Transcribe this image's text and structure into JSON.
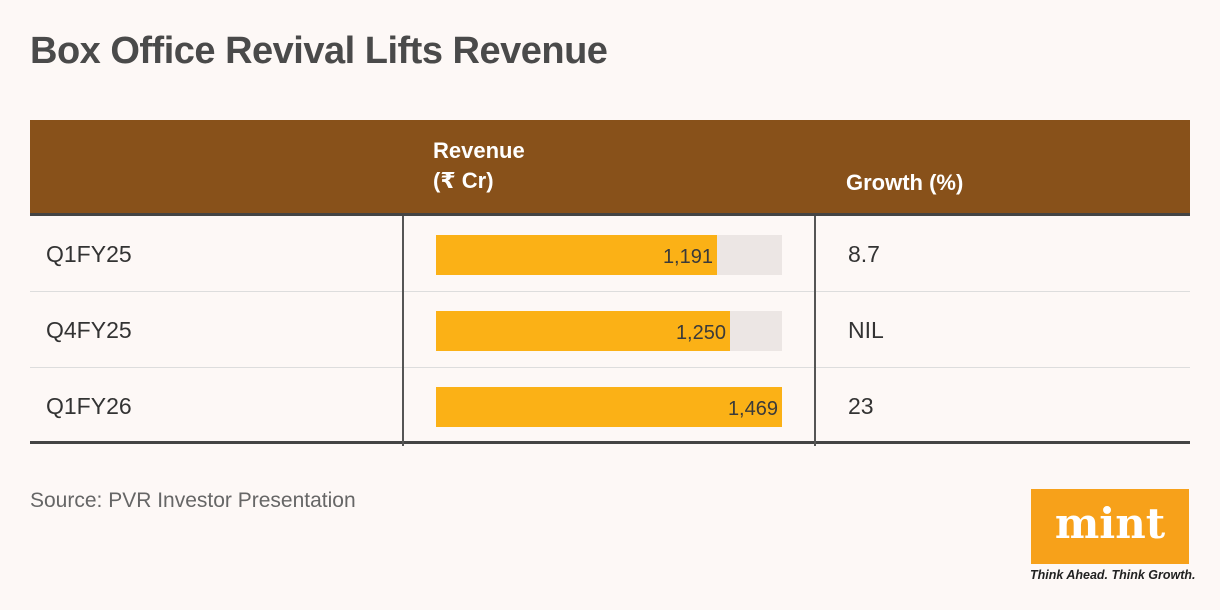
{
  "title": "Box Office Revival Lifts Revenue",
  "header": {
    "revenue_line1": "Revenue",
    "revenue_line2": "(₹ Cr)",
    "growth": "Growth (%)"
  },
  "source": "Source: PVR Investor Presentation",
  "brand": {
    "logo": "mint",
    "tagline": "Think Ahead. Think Growth.",
    "logo_color": "#f7a11a"
  },
  "colors": {
    "header_bg": "#88511a",
    "bar": "#fbb116",
    "bar_track": "#ece6e4"
  },
  "chart_data": {
    "type": "table",
    "title": "Box Office Revival Lifts Revenue",
    "columns": [
      "",
      "Revenue (₹ Cr)",
      "Growth (%)"
    ],
    "rows": [
      {
        "label": "Q1FY25",
        "revenue": 1191,
        "revenue_label": "1,191",
        "growth": "8.7"
      },
      {
        "label": "Q4FY25",
        "revenue": 1250,
        "revenue_label": "1,250",
        "growth": "NIL"
      },
      {
        "label": "Q1FY26",
        "revenue": 1469,
        "revenue_label": "1,469",
        "growth": "23"
      }
    ],
    "bar_max": 1469
  }
}
